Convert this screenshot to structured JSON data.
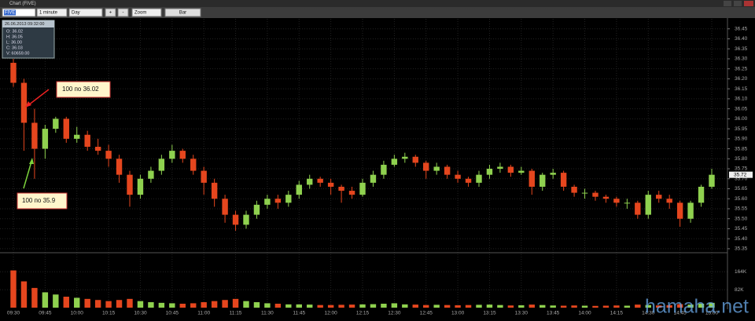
{
  "window": {
    "title": "Chart (FIVE)"
  },
  "toolbar": {
    "symbol": "FIVE",
    "interval": "1 minute",
    "range": "Day",
    "plus": "+",
    "minus": "-",
    "zoom": "Zoom",
    "style": "Bar"
  },
  "info_box": {
    "datetime": "26.06.2013 09:32:00",
    "lines": [
      "O: 36.02",
      "H: 36.05",
      "L: 36.00",
      "C: 36.03",
      "V: 60659.00"
    ]
  },
  "annotations": [
    "100 по 36.02",
    "100 по 35.9"
  ],
  "watermark": "hamaha.net",
  "chart_data": {
    "type": "candlestick",
    "categories": [
      "09:30",
      null,
      null,
      "09:45",
      null,
      null,
      "10:00",
      null,
      null,
      "10:15",
      null,
      null,
      "10:30",
      null,
      null,
      "10:45",
      null,
      null,
      "11:00",
      null,
      null,
      "11:15",
      null,
      null,
      "11:30",
      null,
      null,
      "11:45",
      null,
      null,
      "12:00",
      null,
      null,
      "12:15",
      null,
      null,
      "12:30",
      null,
      null,
      "12:45",
      null,
      null,
      "13:00",
      null,
      null,
      "13:15",
      null,
      null,
      "13:30",
      null,
      null,
      "13:45",
      null,
      null,
      "14:00",
      null,
      null,
      "14:15",
      null,
      null,
      "14:30",
      null,
      null,
      "14:45",
      null,
      null,
      "15:00"
    ],
    "open": [
      36.28,
      36.18,
      35.98,
      35.85,
      35.95,
      36.0,
      35.9,
      35.92,
      35.86,
      35.84,
      35.8,
      35.72,
      35.62,
      35.7,
      35.74,
      35.8,
      35.84,
      35.8,
      35.74,
      35.68,
      35.6,
      35.52,
      35.47,
      35.52,
      35.57,
      35.6,
      35.58,
      35.62,
      35.67,
      35.7,
      35.68,
      35.66,
      35.64,
      35.62,
      35.68,
      35.72,
      35.77,
      35.8,
      35.81,
      35.78,
      35.74,
      35.76,
      35.72,
      35.7,
      35.68,
      35.72,
      35.75,
      35.76,
      35.73,
      35.74,
      35.66,
      35.72,
      35.73,
      35.66,
      35.63,
      35.63,
      35.61,
      35.6,
      35.58,
      35.58,
      35.52,
      35.62,
      35.6,
      35.58,
      35.5,
      35.58,
      35.66
    ],
    "high": [
      36.3,
      36.2,
      36.05,
      35.97,
      36.01,
      36.01,
      35.96,
      35.94,
      35.9,
      35.87,
      35.82,
      35.74,
      35.72,
      35.76,
      35.82,
      35.87,
      35.85,
      35.82,
      35.76,
      35.7,
      35.62,
      35.54,
      35.54,
      35.59,
      35.62,
      35.62,
      35.64,
      35.69,
      35.72,
      35.71,
      35.7,
      35.67,
      35.66,
      35.7,
      35.74,
      35.79,
      35.82,
      35.83,
      35.82,
      35.79,
      35.78,
      35.77,
      35.74,
      35.71,
      35.74,
      35.77,
      35.78,
      35.77,
      35.76,
      35.75,
      35.73,
      35.75,
      35.74,
      35.67,
      35.65,
      35.64,
      35.62,
      35.61,
      35.6,
      35.59,
      35.64,
      35.64,
      35.62,
      35.59,
      35.59,
      35.67,
      35.75
    ],
    "low": [
      36.16,
      35.84,
      35.7,
      35.8,
      35.93,
      35.88,
      35.88,
      35.84,
      35.82,
      35.76,
      35.68,
      35.56,
      35.6,
      35.68,
      35.72,
      35.78,
      35.78,
      35.72,
      35.62,
      35.56,
      35.48,
      35.44,
      35.45,
      35.5,
      35.55,
      35.55,
      35.56,
      35.6,
      35.65,
      35.66,
      35.62,
      35.58,
      35.6,
      35.61,
      35.66,
      35.7,
      35.76,
      35.78,
      35.76,
      35.7,
      35.72,
      35.7,
      35.68,
      35.66,
      35.66,
      35.7,
      35.73,
      35.71,
      35.72,
      35.62,
      35.64,
      35.7,
      35.64,
      35.61,
      35.6,
      35.59,
      35.58,
      35.56,
      35.55,
      35.5,
      35.5,
      35.58,
      35.55,
      35.46,
      35.48,
      35.56,
      35.65
    ],
    "close": [
      36.18,
      35.98,
      35.85,
      35.95,
      36.0,
      35.9,
      35.92,
      35.86,
      35.84,
      35.8,
      35.72,
      35.62,
      35.7,
      35.74,
      35.8,
      35.84,
      35.8,
      35.74,
      35.68,
      35.6,
      35.52,
      35.47,
      35.52,
      35.57,
      35.6,
      35.58,
      35.62,
      35.67,
      35.7,
      35.68,
      35.66,
      35.64,
      35.62,
      35.68,
      35.72,
      35.77,
      35.8,
      35.81,
      35.78,
      35.74,
      35.76,
      35.72,
      35.7,
      35.68,
      35.72,
      35.75,
      35.76,
      35.73,
      35.74,
      35.66,
      35.72,
      35.73,
      35.66,
      35.63,
      35.63,
      35.61,
      35.6,
      35.58,
      35.58,
      35.52,
      35.62,
      35.6,
      35.58,
      35.5,
      35.58,
      35.66,
      35.72
    ],
    "volume": [
      170000,
      120000,
      90000,
      70000,
      60000,
      50000,
      45000,
      40000,
      35000,
      30000,
      35000,
      40000,
      30000,
      25000,
      22000,
      20000,
      18000,
      20000,
      25000,
      30000,
      35000,
      40000,
      30000,
      25000,
      20000,
      18000,
      15000,
      15000,
      14000,
      12000,
      12000,
      13000,
      14000,
      15000,
      16000,
      18000,
      20000,
      15000,
      14000,
      12000,
      13000,
      12000,
      11000,
      12000,
      13000,
      14000,
      12000,
      10000,
      11000,
      14000,
      12000,
      10000,
      9000,
      10000,
      9000,
      8000,
      9000,
      10000,
      9000,
      14000,
      12000,
      10000,
      11000,
      16000,
      14000,
      18000,
      22000
    ],
    "ylim": [
      35.33,
      36.5
    ],
    "yticks": [
      35.35,
      {
        "value": 35.4,
        "label": "35.40"
      },
      35.45,
      {
        "value": 35.5,
        "label": "35.50"
      },
      35.55,
      {
        "value": 35.6,
        "label": "35.60"
      },
      35.65,
      {
        "value": 35.7,
        "label": "35.70"
      },
      35.75,
      {
        "value": 35.8,
        "label": "35.80"
      },
      35.85,
      {
        "value": 35.9,
        "label": "35.90"
      },
      35.95,
      {
        "value": 36,
        "label": "36.00"
      },
      36.05,
      {
        "value": 36.1,
        "label": "36.10"
      },
      36.15,
      {
        "value": 36.2,
        "label": "36.20"
      },
      36.25,
      {
        "value": 36.3,
        "label": "36.30"
      },
      36.35,
      {
        "value": 36.4,
        "label": "36.40"
      },
      36.45
    ],
    "y2lim": [
      0,
      240000
    ],
    "y2ticks": [
      {
        "value": 82000,
        "label": "82K"
      },
      {
        "value": 164000,
        "label": "164K"
      }
    ],
    "last_price": 35.72,
    "up_color": "#8fd14f",
    "down_color": "#e5461e",
    "grid": true
  }
}
